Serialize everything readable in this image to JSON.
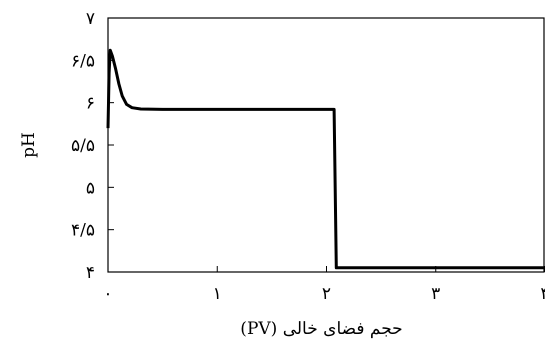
{
  "chart_data": {
    "type": "line",
    "title": "",
    "xlabel": "حجم فضای خالی (PV)",
    "ylabel": "pH",
    "xlim": [
      0,
      4
    ],
    "ylim": [
      4,
      7
    ],
    "x_ticks": [
      {
        "value": 0,
        "label": "۰"
      },
      {
        "value": 1,
        "label": "۱"
      },
      {
        "value": 2,
        "label": "۲"
      },
      {
        "value": 3,
        "label": "۳"
      },
      {
        "value": 4,
        "label": "۴"
      }
    ],
    "y_ticks": [
      {
        "value": 4,
        "label": "۴"
      },
      {
        "value": 4.5,
        "label": "۴/۵"
      },
      {
        "value": 5,
        "label": "۵"
      },
      {
        "value": 5.5,
        "label": "۵/۵"
      },
      {
        "value": 6,
        "label": "۶"
      },
      {
        "value": 6.5,
        "label": "۶/۵"
      },
      {
        "value": 7,
        "label": "۷"
      }
    ],
    "grid": false,
    "legend": "none",
    "series": [
      {
        "color": "#000000",
        "points": [
          [
            0.0,
            5.7
          ],
          [
            0.01,
            6.35
          ],
          [
            0.02,
            6.62
          ],
          [
            0.04,
            6.55
          ],
          [
            0.07,
            6.4
          ],
          [
            0.1,
            6.22
          ],
          [
            0.13,
            6.08
          ],
          [
            0.17,
            5.98
          ],
          [
            0.22,
            5.94
          ],
          [
            0.3,
            5.925
          ],
          [
            0.5,
            5.92
          ],
          [
            1.0,
            5.92
          ],
          [
            1.5,
            5.92
          ],
          [
            2.0,
            5.92
          ],
          [
            2.07,
            5.92
          ],
          [
            2.09,
            4.05
          ],
          [
            3.0,
            4.05
          ],
          [
            4.0,
            4.05
          ]
        ]
      }
    ]
  }
}
